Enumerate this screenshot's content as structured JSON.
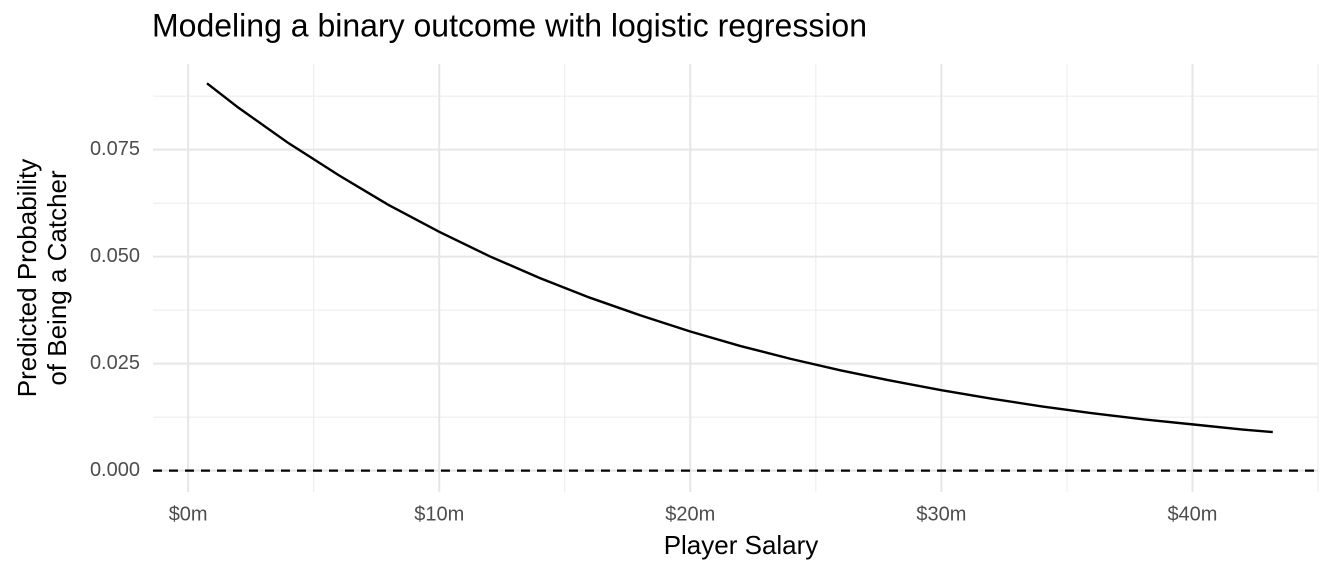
{
  "chart_data": {
    "type": "line",
    "title": "Modeling a binary outcome with logistic regression",
    "xlabel": "Player Salary",
    "ylabel": [
      "Predicted Probability",
      "of Being a Catcher"
    ],
    "x": [
      0.75,
      2,
      4,
      6,
      8,
      10,
      12,
      14,
      16,
      18,
      20,
      22,
      24,
      26,
      28,
      30,
      32,
      34,
      36,
      38,
      40,
      42,
      43.2
    ],
    "series": [
      {
        "color": "#000000",
        "values": [
          0.0905,
          0.0848,
          0.0765,
          0.069,
          0.062,
          0.0558,
          0.0501,
          0.045,
          0.0404,
          0.0363,
          0.0325,
          0.0291,
          0.0261,
          0.0234,
          0.021,
          0.0188,
          0.0168,
          0.015,
          0.0134,
          0.012,
          0.0108,
          0.0096,
          0.009
        ]
      }
    ],
    "xlim": [
      -1.4,
      45
    ],
    "ylim": [
      -0.005,
      0.095
    ],
    "xticks": [
      {
        "value": 0,
        "label": "$0m"
      },
      {
        "value": 10,
        "label": "$10m"
      },
      {
        "value": 20,
        "label": "$20m"
      },
      {
        "value": 30,
        "label": "$30m"
      },
      {
        "value": 40,
        "label": "$40m"
      }
    ],
    "yticks": [
      {
        "value": 0,
        "label": "0.000"
      },
      {
        "value": 0.025,
        "label": "0.025"
      },
      {
        "value": 0.05,
        "label": "0.050"
      },
      {
        "value": 0.075,
        "label": "0.075"
      }
    ],
    "hline": 0,
    "grid": true
  }
}
